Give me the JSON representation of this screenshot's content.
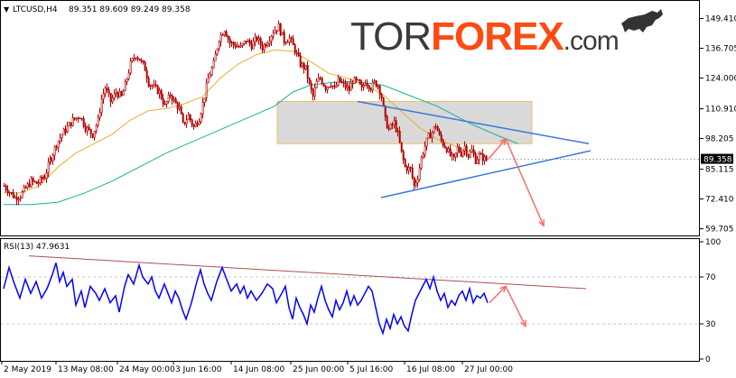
{
  "header": {
    "symbol": "LTCUSD,H4",
    "ohlc": "89.351 89.609 89.249 89.358"
  },
  "brand": {
    "part1": "TOR",
    "part2": "FOREX",
    "part3": ".com",
    "color_dark": "#3a3a3a",
    "color_accent": "#ff4a12"
  },
  "colors": {
    "candle": "#b00000",
    "ma_fast": "#e8b030",
    "ma_slow": "#1ab394",
    "trend_line": "#3a78d8",
    "projection": "#ff6a6a",
    "zone_fill": "#d9d9d9",
    "zone_border": "#f0c060",
    "rsi_line": "#0000ff",
    "rsi_trend": "#b05050",
    "axis": "#000000",
    "grid": "#c8c8c8",
    "price_tag_bg": "#000000",
    "price_tag_fg": "#ffffff"
  },
  "chart_data": [
    {
      "type": "candlestick",
      "instrument": "LTCUSD",
      "timeframe": "H4",
      "y_ticks": [
        "149.410",
        "136.705",
        "124.000",
        "110.910",
        "98.205",
        "85.115",
        "72.410",
        "59.705"
      ],
      "y_tick_values": [
        149.41,
        136.705,
        124.0,
        110.91,
        98.205,
        85.115,
        72.41,
        59.705
      ],
      "ylim": [
        58,
        155
      ],
      "current_price": "89.358",
      "price_path": [
        [
          0,
          78
        ],
        [
          12,
          73
        ],
        [
          18,
          74
        ],
        [
          30,
          80
        ],
        [
          36,
          79
        ],
        [
          45,
          82
        ],
        [
          52,
          90
        ],
        [
          58,
          96
        ],
        [
          64,
          100
        ],
        [
          70,
          103
        ],
        [
          76,
          106
        ],
        [
          84,
          108
        ],
        [
          90,
          103
        ],
        [
          98,
          100
        ],
        [
          104,
          106
        ],
        [
          108,
          115
        ],
        [
          112,
          120
        ],
        [
          118,
          114
        ],
        [
          124,
          118
        ],
        [
          130,
          116
        ],
        [
          134,
          121
        ],
        [
          140,
          130
        ],
        [
          146,
          134
        ],
        [
          150,
          132
        ],
        [
          156,
          128
        ],
        [
          160,
          122
        ],
        [
          166,
          120
        ],
        [
          172,
          118
        ],
        [
          178,
          112
        ],
        [
          184,
          117
        ],
        [
          190,
          113
        ],
        [
          194,
          111
        ],
        [
          198,
          104
        ],
        [
          204,
          108
        ],
        [
          210,
          103
        ],
        [
          216,
          107
        ],
        [
          220,
          113
        ],
        [
          226,
          124
        ],
        [
          232,
          130
        ],
        [
          238,
          141
        ],
        [
          244,
          145
        ],
        [
          250,
          139
        ],
        [
          256,
          138
        ],
        [
          262,
          137
        ],
        [
          268,
          140
        ],
        [
          274,
          138
        ],
        [
          280,
          141
        ],
        [
          286,
          137
        ],
        [
          292,
          140
        ],
        [
          298,
          144
        ],
        [
          304,
          146
        ],
        [
          310,
          140
        ],
        [
          316,
          141
        ],
        [
          322,
          136
        ],
        [
          328,
          130
        ],
        [
          334,
          128
        ],
        [
          338,
          121
        ],
        [
          342,
          116
        ],
        [
          346,
          122
        ],
        [
          350,
          124
        ],
        [
          356,
          120
        ],
        [
          362,
          122
        ],
        [
          366,
          119
        ],
        [
          370,
          123
        ],
        [
          376,
          121
        ],
        [
          382,
          119
        ],
        [
          386,
          123
        ],
        [
          392,
          122
        ],
        [
          396,
          119
        ],
        [
          400,
          123
        ],
        [
          406,
          120
        ],
        [
          410,
          122
        ],
        [
          414,
          121
        ],
        [
          418,
          116
        ],
        [
          422,
          106
        ],
        [
          426,
          102
        ],
        [
          432,
          105
        ],
        [
          436,
          100
        ],
        [
          440,
          92
        ],
        [
          444,
          86
        ],
        [
          450,
          85
        ],
        [
          454,
          78
        ],
        [
          458,
          82
        ],
        [
          462,
          90
        ],
        [
          466,
          95
        ],
        [
          470,
          99
        ],
        [
          474,
          101
        ],
        [
          478,
          104
        ],
        [
          482,
          99
        ],
        [
          486,
          96
        ],
        [
          490,
          94
        ],
        [
          494,
          91
        ],
        [
          498,
          89
        ],
        [
          502,
          94
        ],
        [
          506,
          92
        ],
        [
          510,
          95
        ],
        [
          514,
          91
        ],
        [
          518,
          93
        ],
        [
          522,
          89
        ],
        [
          526,
          91
        ],
        [
          530,
          90
        ],
        [
          534,
          89
        ],
        [
          536,
          89.4
        ]
      ],
      "ma_fast_path": [
        [
          0,
          75
        ],
        [
          20,
          75
        ],
        [
          40,
          78
        ],
        [
          60,
          86
        ],
        [
          80,
          92
        ],
        [
          100,
          96
        ],
        [
          120,
          100
        ],
        [
          140,
          106
        ],
        [
          160,
          110
        ],
        [
          180,
          111
        ],
        [
          200,
          113
        ],
        [
          220,
          116
        ],
        [
          240,
          124
        ],
        [
          260,
          130
        ],
        [
          280,
          134
        ],
        [
          300,
          136
        ],
        [
          320,
          135.5
        ],
        [
          340,
          131
        ],
        [
          360,
          126
        ],
        [
          380,
          124
        ],
        [
          400,
          121
        ],
        [
          420,
          117
        ],
        [
          440,
          110
        ],
        [
          460,
          103
        ],
        [
          480,
          98
        ],
        [
          500,
          95
        ],
        [
          520,
          92
        ],
        [
          536,
          91
        ]
      ],
      "ma_slow_path": [
        [
          0,
          70
        ],
        [
          30,
          70
        ],
        [
          60,
          71
        ],
        [
          90,
          75
        ],
        [
          120,
          80
        ],
        [
          150,
          86
        ],
        [
          180,
          92
        ],
        [
          210,
          97
        ],
        [
          240,
          102
        ],
        [
          270,
          107
        ],
        [
          300,
          112
        ],
        [
          320,
          118
        ],
        [
          340,
          121
        ],
        [
          360,
          122
        ],
        [
          380,
          122.5
        ],
        [
          400,
          122
        ],
        [
          420,
          121
        ],
        [
          440,
          118
        ],
        [
          460,
          115
        ],
        [
          480,
          112
        ],
        [
          500,
          108
        ],
        [
          520,
          104
        ],
        [
          550,
          99
        ],
        [
          570,
          96
        ]
      ],
      "resistance_zone": {
        "x0": 303,
        "x1": 585,
        "y_top": 114,
        "y_bottom": 96
      },
      "trend_lines": [
        {
          "from": [
            392,
            114
          ],
          "to": [
            648,
            96
          ]
        },
        {
          "from": [
            418,
            73
          ],
          "to": [
            650,
            93
          ]
        }
      ],
      "projection": {
        "from": [
          537,
          89.5
        ],
        "peak": [
          556,
          98
        ],
        "target": [
          598,
          61
        ]
      }
    },
    {
      "type": "line",
      "title": "RSI(13) 47.9631",
      "y_ticks": [
        "100",
        "70",
        "30",
        "0"
      ],
      "y_tick_values": [
        100,
        70,
        30,
        0
      ],
      "ylim": [
        0,
        100
      ],
      "levels": [
        70,
        30
      ],
      "x_tick_labels": [
        "2 May 2019",
        "13 May 08:00",
        "24 May 00:00",
        "3 Jun 16:00",
        "14 Jun 08:00",
        "25 Jun 00:00",
        "5 Jul 16:00",
        "16 Jul 08:00",
        "27 Jul 00:00"
      ],
      "rsi_path": [
        [
          0,
          60
        ],
        [
          6,
          78
        ],
        [
          12,
          64
        ],
        [
          18,
          52
        ],
        [
          24,
          68
        ],
        [
          30,
          56
        ],
        [
          36,
          66
        ],
        [
          42,
          52
        ],
        [
          48,
          60
        ],
        [
          54,
          72
        ],
        [
          58,
          82
        ],
        [
          62,
          66
        ],
        [
          66,
          74
        ],
        [
          70,
          62
        ],
        [
          76,
          68
        ],
        [
          80,
          46
        ],
        [
          86,
          58
        ],
        [
          90,
          44
        ],
        [
          96,
          62
        ],
        [
          102,
          56
        ],
        [
          106,
          50
        ],
        [
          112,
          60
        ],
        [
          118,
          48
        ],
        [
          124,
          54
        ],
        [
          128,
          40
        ],
        [
          134,
          62
        ],
        [
          138,
          72
        ],
        [
          144,
          64
        ],
        [
          150,
          80
        ],
        [
          154,
          70
        ],
        [
          160,
          64
        ],
        [
          164,
          70
        ],
        [
          168,
          58
        ],
        [
          172,
          52
        ],
        [
          178,
          64
        ],
        [
          182,
          56
        ],
        [
          186,
          48
        ],
        [
          190,
          58
        ],
        [
          194,
          52
        ],
        [
          198,
          42
        ],
        [
          202,
          34
        ],
        [
          208,
          48
        ],
        [
          214,
          66
        ],
        [
          218,
          76
        ],
        [
          222,
          64
        ],
        [
          226,
          56
        ],
        [
          230,
          50
        ],
        [
          236,
          66
        ],
        [
          242,
          78
        ],
        [
          246,
          70
        ],
        [
          252,
          58
        ],
        [
          258,
          64
        ],
        [
          262,
          56
        ],
        [
          266,
          62
        ],
        [
          270,
          52
        ],
        [
          274,
          58
        ],
        [
          280,
          50
        ],
        [
          286,
          56
        ],
        [
          292,
          64
        ],
        [
          298,
          60
        ],
        [
          302,
          48
        ],
        [
          308,
          56
        ],
        [
          312,
          62
        ],
        [
          316,
          44
        ],
        [
          320,
          34
        ],
        [
          324,
          52
        ],
        [
          328,
          44
        ],
        [
          332,
          38
        ],
        [
          336,
          30
        ],
        [
          340,
          46
        ],
        [
          344,
          40
        ],
        [
          348,
          52
        ],
        [
          352,
          62
        ],
        [
          356,
          50
        ],
        [
          360,
          42
        ],
        [
          364,
          36
        ],
        [
          368,
          50
        ],
        [
          372,
          42
        ],
        [
          376,
          48
        ],
        [
          380,
          58
        ],
        [
          384,
          46
        ],
        [
          388,
          54
        ],
        [
          392,
          46
        ],
        [
          396,
          50
        ],
        [
          400,
          56
        ],
        [
          404,
          62
        ],
        [
          408,
          58
        ],
        [
          412,
          44
        ],
        [
          416,
          30
        ],
        [
          420,
          22
        ],
        [
          424,
          34
        ],
        [
          428,
          26
        ],
        [
          432,
          38
        ],
        [
          436,
          30
        ],
        [
          440,
          36
        ],
        [
          444,
          28
        ],
        [
          448,
          24
        ],
        [
          452,
          38
        ],
        [
          456,
          50
        ],
        [
          460,
          56
        ],
        [
          464,
          62
        ],
        [
          468,
          68
        ],
        [
          472,
          60
        ],
        [
          476,
          70
        ],
        [
          480,
          58
        ],
        [
          484,
          50
        ],
        [
          488,
          56
        ],
        [
          492,
          44
        ],
        [
          496,
          50
        ],
        [
          500,
          46
        ],
        [
          504,
          54
        ],
        [
          508,
          58
        ],
        [
          512,
          50
        ],
        [
          516,
          60
        ],
        [
          520,
          48
        ],
        [
          524,
          54
        ],
        [
          528,
          52
        ],
        [
          532,
          56
        ],
        [
          536,
          48
        ]
      ],
      "trend_line": {
        "from": [
          28,
          88
        ],
        "to": [
          645,
          60
        ]
      },
      "projection": {
        "from": [
          538,
          48
        ],
        "peak": [
          556,
          62
        ],
        "target": [
          578,
          28
        ]
      }
    }
  ]
}
